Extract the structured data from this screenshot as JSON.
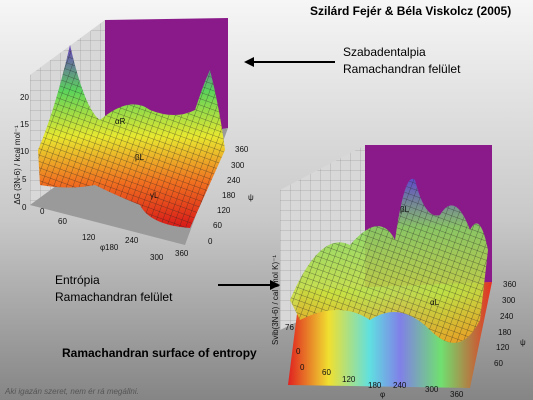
{
  "header": {
    "authors": "Szilárd Fejér & Béla Viskolcz (2005)"
  },
  "labels": {
    "free_enthalpy": [
      "Szabadentalpia",
      "Ramachandran felület"
    ],
    "entropy": [
      "Entrópia",
      "Ramachandran felület"
    ],
    "english": "Ramachandran surface of entropy"
  },
  "footer": "Aki igazán szeret, nem ér rá megállni.",
  "plot1": {
    "z_label": "ΔG (3N-6) / kcal mol⁻¹",
    "z_ticks": [
      "20",
      "15",
      "10",
      "5",
      "0"
    ],
    "phi_ticks": [
      "0",
      "60",
      "120",
      "180",
      "240",
      "300",
      "360"
    ],
    "psi_ticks": [
      "360",
      "300",
      "240",
      "180",
      "120",
      "60",
      "0"
    ],
    "phi_label": "φ",
    "psi_label": "ψ",
    "annotations": [
      "αR",
      "βL",
      "γL"
    ]
  },
  "plot2": {
    "z_label": "Svib(3N-6) / cal (mol K)⁻¹",
    "z_ticks": [
      "76",
      "0"
    ],
    "phi_ticks": [
      "0",
      "60",
      "120",
      "180",
      "240",
      "300",
      "360"
    ],
    "psi_ticks": [
      "360",
      "300",
      "240",
      "180",
      "120",
      "60"
    ],
    "phi_label": "φ",
    "psi_label": "ψ",
    "annotations": [
      "βL",
      "αL"
    ]
  }
}
